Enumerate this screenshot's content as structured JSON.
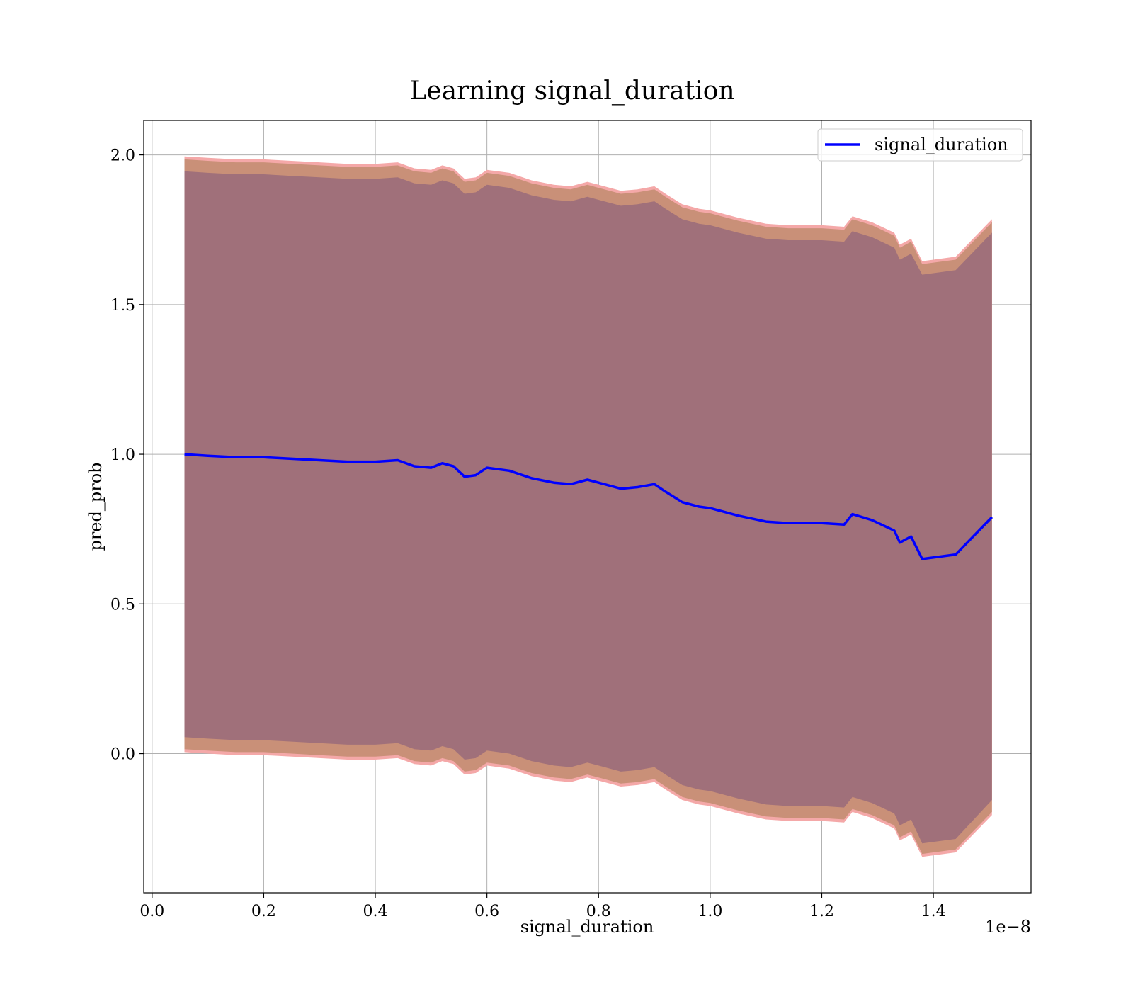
{
  "chart_data": {
    "type": "line",
    "title": "Learning signal_duration",
    "xlabel": "signal_duration",
    "ylabel": "pred_prob",
    "x_offset_label": "1e−8",
    "xlim": [
      -0.015,
      1.575
    ],
    "ylim": [
      -0.465,
      2.115
    ],
    "x_ticks": [
      0.0,
      0.2,
      0.4,
      0.6,
      0.8,
      1.0,
      1.2,
      1.4
    ],
    "x_tick_labels": [
      "0.0",
      "0.2",
      "0.4",
      "0.6",
      "0.8",
      "1.0",
      "1.2",
      "1.4"
    ],
    "y_ticks": [
      0.0,
      0.5,
      1.0,
      1.5,
      2.0
    ],
    "y_tick_labels": [
      "0.0",
      "0.5",
      "1.0",
      "1.5",
      "2.0"
    ],
    "grid": true,
    "legend_position": "top-right",
    "series": [
      {
        "name": "signal_duration",
        "color": "#0000ff",
        "x": [
          0.058,
          0.1,
          0.15,
          0.2,
          0.25,
          0.3,
          0.35,
          0.4,
          0.44,
          0.47,
          0.5,
          0.52,
          0.54,
          0.56,
          0.58,
          0.6,
          0.64,
          0.68,
          0.72,
          0.75,
          0.78,
          0.8,
          0.84,
          0.87,
          0.9,
          0.92,
          0.95,
          0.98,
          1.0,
          1.05,
          1.1,
          1.14,
          1.2,
          1.24,
          1.255,
          1.29,
          1.33,
          1.34,
          1.36,
          1.38,
          1.44,
          1.505
        ],
        "y": [
          1.0,
          0.995,
          0.99,
          0.99,
          0.985,
          0.98,
          0.975,
          0.975,
          0.98,
          0.96,
          0.955,
          0.97,
          0.96,
          0.925,
          0.93,
          0.955,
          0.945,
          0.92,
          0.905,
          0.9,
          0.915,
          0.905,
          0.885,
          0.89,
          0.9,
          0.875,
          0.84,
          0.825,
          0.82,
          0.795,
          0.775,
          0.77,
          0.77,
          0.765,
          0.8,
          0.78,
          0.745,
          0.705,
          0.725,
          0.65,
          0.665,
          0.79
        ]
      }
    ],
    "bands": [
      {
        "color": "#f4a8a8",
        "x": [
          0.058,
          0.1,
          0.15,
          0.2,
          0.25,
          0.3,
          0.35,
          0.4,
          0.44,
          0.47,
          0.5,
          0.52,
          0.54,
          0.56,
          0.58,
          0.6,
          0.64,
          0.68,
          0.72,
          0.75,
          0.78,
          0.8,
          0.84,
          0.87,
          0.9,
          0.92,
          0.95,
          0.98,
          1.0,
          1.05,
          1.1,
          1.14,
          1.2,
          1.24,
          1.255,
          1.29,
          1.33,
          1.34,
          1.36,
          1.38,
          1.44,
          1.505
        ],
        "upper": [
          1.995,
          1.99,
          1.985,
          1.985,
          1.98,
          1.975,
          1.97,
          1.97,
          1.975,
          1.955,
          1.95,
          1.965,
          1.955,
          1.92,
          1.925,
          1.95,
          1.94,
          1.915,
          1.9,
          1.895,
          1.91,
          1.9,
          1.88,
          1.885,
          1.895,
          1.87,
          1.835,
          1.82,
          1.815,
          1.79,
          1.77,
          1.765,
          1.765,
          1.76,
          1.795,
          1.775,
          1.74,
          1.7,
          1.72,
          1.645,
          1.66,
          1.785
        ],
        "lower": [
          0.005,
          0.0,
          -0.005,
          -0.005,
          -0.01,
          -0.015,
          -0.02,
          -0.02,
          -0.015,
          -0.035,
          -0.04,
          -0.025,
          -0.035,
          -0.07,
          -0.065,
          -0.04,
          -0.05,
          -0.075,
          -0.09,
          -0.095,
          -0.08,
          -0.09,
          -0.11,
          -0.105,
          -0.095,
          -0.12,
          -0.155,
          -0.17,
          -0.175,
          -0.2,
          -0.22,
          -0.225,
          -0.225,
          -0.23,
          -0.195,
          -0.215,
          -0.25,
          -0.29,
          -0.27,
          -0.345,
          -0.33,
          -0.205
        ]
      },
      {
        "color": "#c99078",
        "x": [
          0.058,
          0.1,
          0.15,
          0.2,
          0.25,
          0.3,
          0.35,
          0.4,
          0.44,
          0.47,
          0.5,
          0.52,
          0.54,
          0.56,
          0.58,
          0.6,
          0.64,
          0.68,
          0.72,
          0.75,
          0.78,
          0.8,
          0.84,
          0.87,
          0.9,
          0.92,
          0.95,
          0.98,
          1.0,
          1.05,
          1.1,
          1.14,
          1.2,
          1.24,
          1.255,
          1.29,
          1.33,
          1.34,
          1.36,
          1.38,
          1.44,
          1.505
        ],
        "upper": [
          1.985,
          1.98,
          1.975,
          1.975,
          1.97,
          1.965,
          1.96,
          1.96,
          1.965,
          1.945,
          1.94,
          1.955,
          1.945,
          1.91,
          1.915,
          1.94,
          1.93,
          1.905,
          1.89,
          1.885,
          1.9,
          1.89,
          1.87,
          1.875,
          1.885,
          1.86,
          1.825,
          1.81,
          1.805,
          1.78,
          1.76,
          1.755,
          1.755,
          1.75,
          1.785,
          1.765,
          1.73,
          1.69,
          1.71,
          1.635,
          1.65,
          1.775
        ],
        "lower": [
          0.015,
          0.01,
          0.005,
          0.005,
          0.0,
          -0.005,
          -0.01,
          -0.01,
          -0.005,
          -0.025,
          -0.03,
          -0.015,
          -0.025,
          -0.06,
          -0.055,
          -0.03,
          -0.04,
          -0.065,
          -0.08,
          -0.085,
          -0.07,
          -0.08,
          -0.1,
          -0.095,
          -0.085,
          -0.11,
          -0.145,
          -0.16,
          -0.165,
          -0.19,
          -0.21,
          -0.215,
          -0.215,
          -0.22,
          -0.185,
          -0.205,
          -0.24,
          -0.28,
          -0.26,
          -0.335,
          -0.32,
          -0.195
        ]
      },
      {
        "color": "#a0707a",
        "x": [
          0.058,
          0.1,
          0.15,
          0.2,
          0.25,
          0.3,
          0.35,
          0.4,
          0.44,
          0.47,
          0.5,
          0.52,
          0.54,
          0.56,
          0.58,
          0.6,
          0.64,
          0.68,
          0.72,
          0.75,
          0.78,
          0.8,
          0.84,
          0.87,
          0.9,
          0.92,
          0.95,
          0.98,
          1.0,
          1.05,
          1.1,
          1.14,
          1.2,
          1.24,
          1.255,
          1.29,
          1.33,
          1.34,
          1.36,
          1.38,
          1.44,
          1.505
        ],
        "upper": [
          1.945,
          1.94,
          1.935,
          1.935,
          1.93,
          1.925,
          1.92,
          1.92,
          1.925,
          1.905,
          1.9,
          1.915,
          1.905,
          1.87,
          1.875,
          1.9,
          1.89,
          1.865,
          1.85,
          1.845,
          1.86,
          1.85,
          1.83,
          1.835,
          1.845,
          1.82,
          1.785,
          1.77,
          1.765,
          1.74,
          1.72,
          1.715,
          1.715,
          1.71,
          1.745,
          1.725,
          1.69,
          1.65,
          1.67,
          1.6,
          1.615,
          1.74
        ],
        "lower": [
          0.055,
          0.05,
          0.045,
          0.045,
          0.04,
          0.035,
          0.03,
          0.03,
          0.035,
          0.015,
          0.01,
          0.025,
          0.015,
          -0.02,
          -0.015,
          0.01,
          0.0,
          -0.025,
          -0.04,
          -0.045,
          -0.03,
          -0.04,
          -0.06,
          -0.055,
          -0.045,
          -0.07,
          -0.105,
          -0.12,
          -0.125,
          -0.15,
          -0.17,
          -0.175,
          -0.175,
          -0.18,
          -0.145,
          -0.165,
          -0.2,
          -0.24,
          -0.22,
          -0.3,
          -0.285,
          -0.155
        ]
      }
    ]
  }
}
